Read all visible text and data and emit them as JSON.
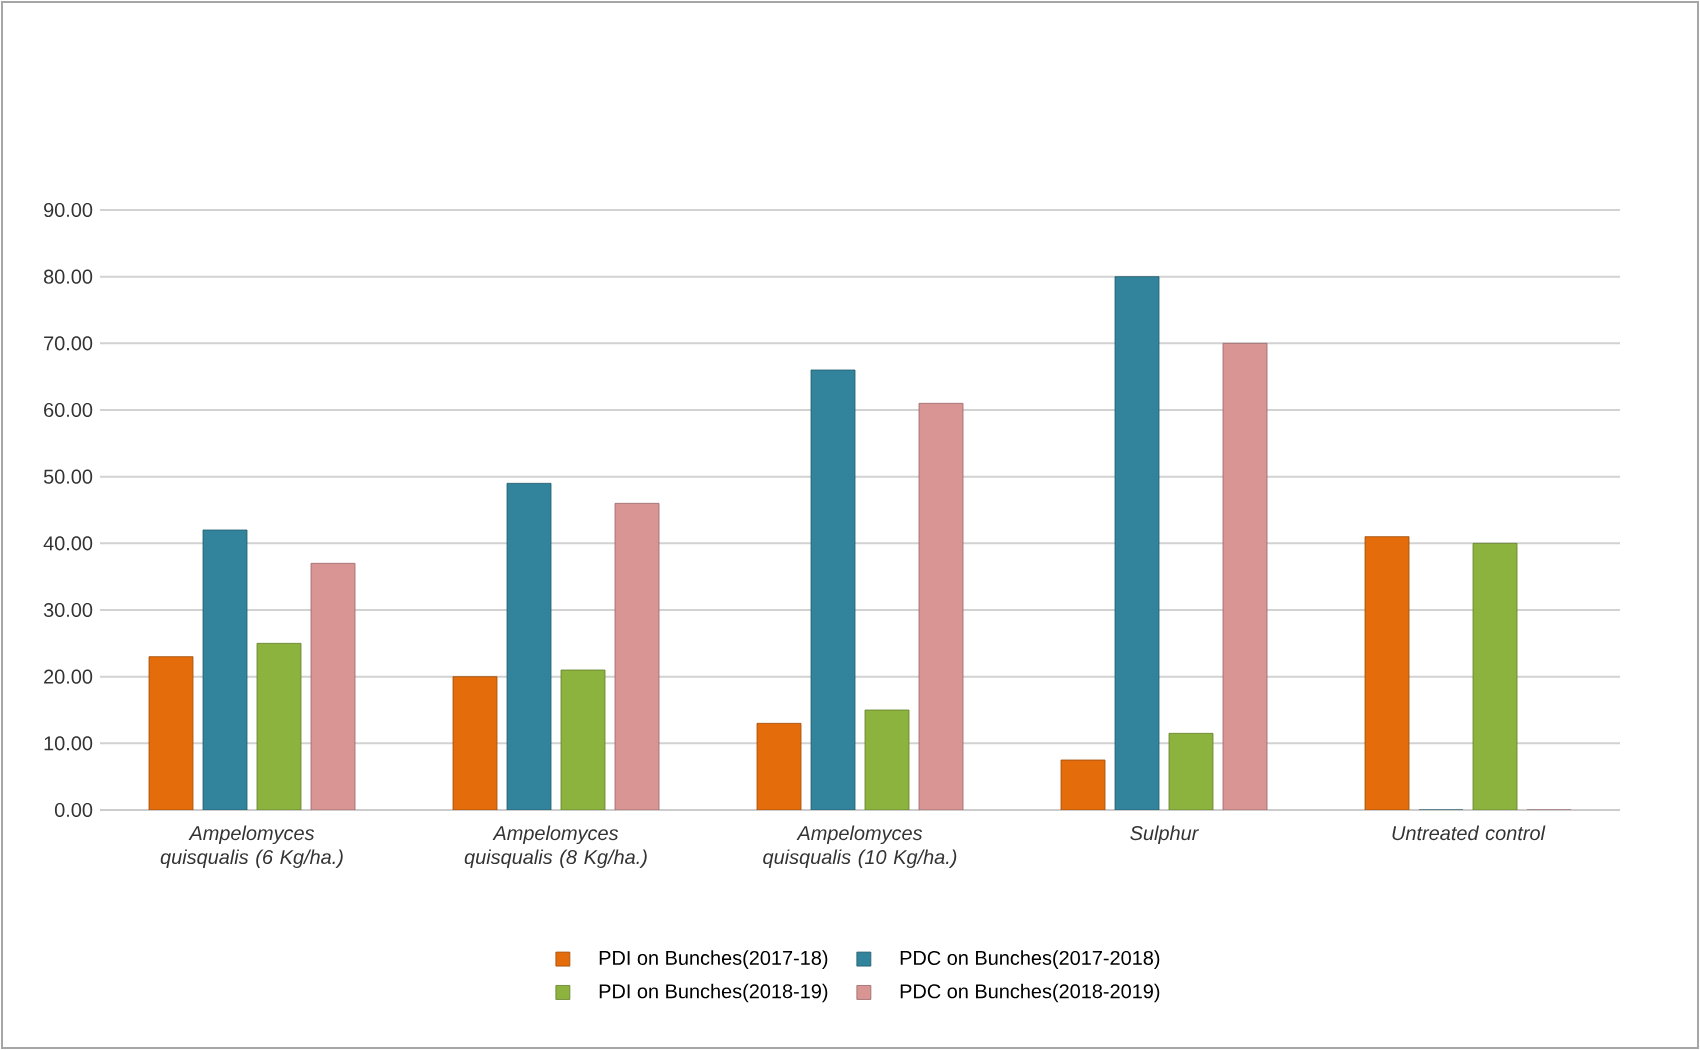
{
  "chart_data": {
    "type": "bar",
    "categories": [
      "Ampelomyces quisqualis  (6 Kg/ha.)",
      "Ampelomyces quisqualis  (8 Kg/ha.)",
      "Ampelomyces quisqualis  (10 Kg/ha.)",
      "Sulphur",
      "Untreated control"
    ],
    "series": [
      {
        "name": "PDI on Bunches(2017-18)",
        "color": "#e46c0a",
        "values": [
          23,
          20,
          13,
          7.5,
          41
        ]
      },
      {
        "name": "PDC on Bunches(2017-2018)",
        "color": "#31849b",
        "values": [
          42,
          49,
          66,
          80,
          0
        ]
      },
      {
        "name": "PDI on Bunches(2018-19)",
        "color": "#8db33f",
        "values": [
          25,
          21,
          15,
          11.5,
          40
        ]
      },
      {
        "name": "PDC on Bunches(2018-2019)",
        "color": "#d99594",
        "values": [
          37,
          46,
          61,
          70,
          0
        ]
      }
    ],
    "ylim": [
      0,
      90
    ],
    "yticks": [
      {
        "value": 0,
        "label": "0.00"
      },
      {
        "value": 10,
        "label": "10.00"
      },
      {
        "value": 20,
        "label": "20.00"
      },
      {
        "value": 30,
        "label": "30.00"
      },
      {
        "value": 40,
        "label": "40.00"
      },
      {
        "value": 50,
        "label": "50.00"
      },
      {
        "value": 60,
        "label": "60.00"
      },
      {
        "value": 70,
        "label": "70.00"
      },
      {
        "value": 80,
        "label": "80.00"
      },
      {
        "value": 90,
        "label": "90.00"
      }
    ],
    "grid": "y",
    "legend": "bottom"
  }
}
